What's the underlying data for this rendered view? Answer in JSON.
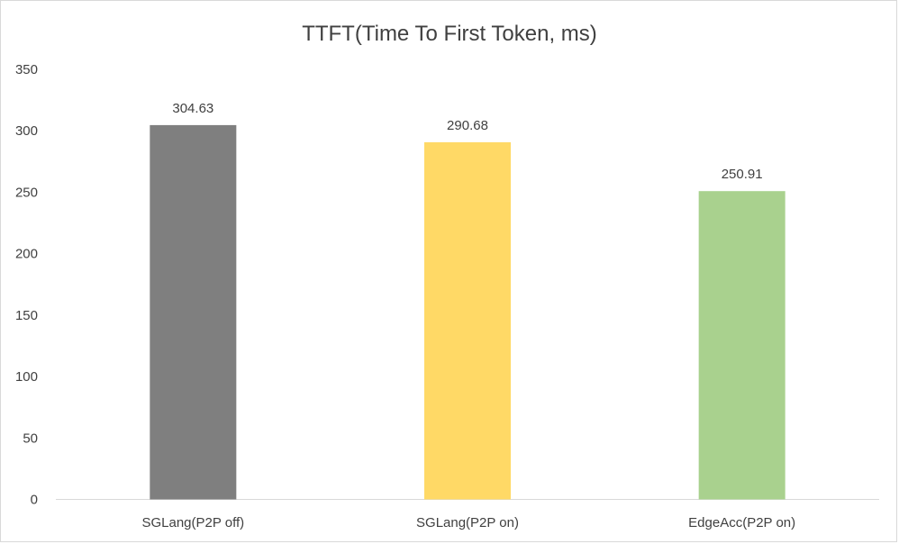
{
  "chart_data": {
    "type": "bar",
    "title": "TTFT(Time To First Token, ms)",
    "categories": [
      "SGLang(P2P off)",
      "SGLang(P2P on)",
      "EdgeAcc(P2P on)"
    ],
    "values": [
      304.63,
      290.68,
      250.91
    ],
    "data_labels": [
      "304.63",
      "290.68",
      "250.91"
    ],
    "bar_colors": [
      "#7f7f7f",
      "#ffd966",
      "#a9d18e"
    ],
    "xlabel": "",
    "ylabel": "",
    "ylim": [
      0,
      350
    ],
    "yticks": [
      0,
      50,
      100,
      150,
      200,
      250,
      300,
      350
    ],
    "grid": false,
    "legend": "none"
  }
}
